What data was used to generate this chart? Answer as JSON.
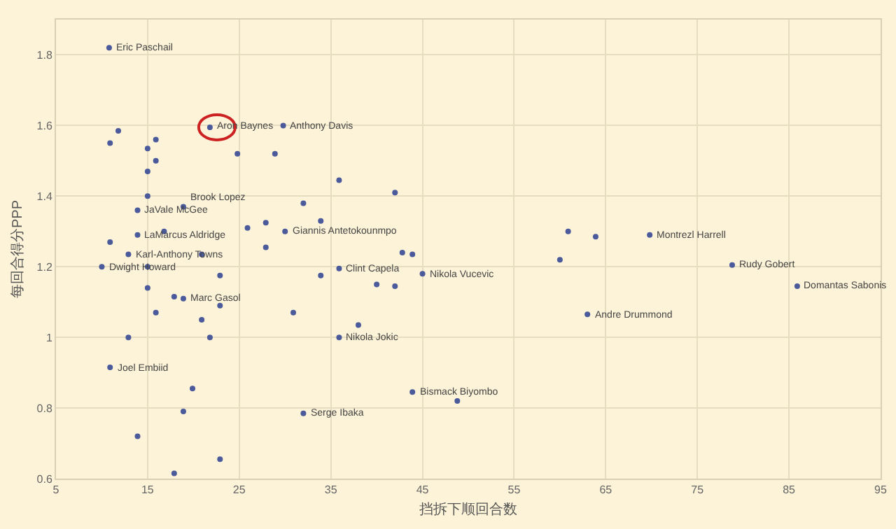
{
  "chart_data": {
    "type": "scatter",
    "xlabel": "挡拆下顺回合数",
    "ylabel": "每回合得分PPP",
    "xlim": [
      5,
      95
    ],
    "xticks": [
      5,
      15,
      25,
      35,
      45,
      55,
      65,
      75,
      85,
      95
    ],
    "ylim": [
      0.6,
      1.9
    ],
    "yticks": [
      0.6,
      0.8,
      1,
      1.2,
      1.4,
      1.6,
      1.8
    ],
    "grid": true,
    "marker": "circle",
    "series": [
      {
        "color": "#4a5a9a",
        "x": [
          10.8,
          11.8,
          10.9,
          15,
          15.9,
          15.9,
          15,
          15,
          13.9,
          18.9,
          21.8,
          29.8,
          24.8,
          28.9,
          10.9,
          13.9,
          16.8,
          12.9,
          20.9,
          25.9,
          27.9,
          30,
          27.9,
          32,
          35.9,
          42,
          33.9,
          60.9,
          63.9,
          42.8,
          43.9,
          60,
          10,
          15,
          22.9,
          15,
          17.9,
          18.9,
          22.9,
          15.9,
          20.9,
          12.9,
          21.8,
          30.9,
          10.9,
          19.9,
          18.9,
          13.9,
          22.9,
          17.9,
          32,
          33.9,
          35.9,
          40,
          42,
          45,
          38,
          35.9,
          43.9,
          48.8,
          63,
          69.8,
          78.8,
          85.9
        ],
        "values": [
          1.82,
          1.585,
          1.55,
          1.535,
          1.56,
          1.5,
          1.47,
          1.4,
          1.36,
          1.37,
          1.595,
          1.6,
          1.52,
          1.52,
          1.27,
          1.29,
          1.3,
          1.235,
          1.235,
          1.31,
          1.325,
          1.3,
          1.255,
          1.38,
          1.445,
          1.41,
          1.33,
          1.3,
          1.285,
          1.24,
          1.235,
          1.22,
          1.2,
          1.2,
          1.175,
          1.14,
          1.115,
          1.11,
          1.09,
          1.07,
          1.05,
          1,
          1,
          1.07,
          0.915,
          0.855,
          0.79,
          0.72,
          0.655,
          0.615,
          0.785,
          1.175,
          1.195,
          1.15,
          1.145,
          1.18,
          1.035,
          1,
          0.845,
          0.82,
          1.065,
          1.29,
          1.205,
          1.145
        ]
      }
    ],
    "annotations": [
      {
        "text": "Eric Paschail",
        "x": 10.8,
        "y": 1.82
      },
      {
        "text": "Aron Baynes",
        "x": 21.8,
        "y": 1.595
      },
      {
        "text": "Anthony Davis",
        "x": 29.8,
        "y": 1.6
      },
      {
        "text": "Brook Lopez",
        "x": 18.9,
        "y": 1.37
      },
      {
        "text": "JaVale McGee",
        "x": 13.9,
        "y": 1.36
      },
      {
        "text": "LaMarcus Aldridge",
        "x": 13.9,
        "y": 1.29
      },
      {
        "text": "Giannis Antetokounmpo",
        "x": 30,
        "y": 1.3
      },
      {
        "text": "Karl-Anthony Towns",
        "x": 12.9,
        "y": 1.235
      },
      {
        "text": "Dwight Howard",
        "x": 10,
        "y": 1.2
      },
      {
        "text": "Clint Capela",
        "x": 35.9,
        "y": 1.195
      },
      {
        "text": "Nikola Vucevic",
        "x": 45,
        "y": 1.18
      },
      {
        "text": "Montrezl Harrell",
        "x": 69.8,
        "y": 1.29
      },
      {
        "text": "Rudy Gobert",
        "x": 78.8,
        "y": 1.205
      },
      {
        "text": "Domantas Sabonis",
        "x": 85.9,
        "y": 1.145
      },
      {
        "text": "Marc Gasol",
        "x": 18.9,
        "y": 1.11
      },
      {
        "text": "Andre Drummond",
        "x": 63,
        "y": 1.065
      },
      {
        "text": "Nikola Jokic",
        "x": 35.9,
        "y": 1
      },
      {
        "text": "Joel Embiid",
        "x": 10.9,
        "y": 0.915
      },
      {
        "text": "Bismack Biyombo",
        "x": 43.9,
        "y": 0.845
      },
      {
        "text": "Serge Ibaka",
        "x": 32,
        "y": 0.785
      }
    ]
  }
}
